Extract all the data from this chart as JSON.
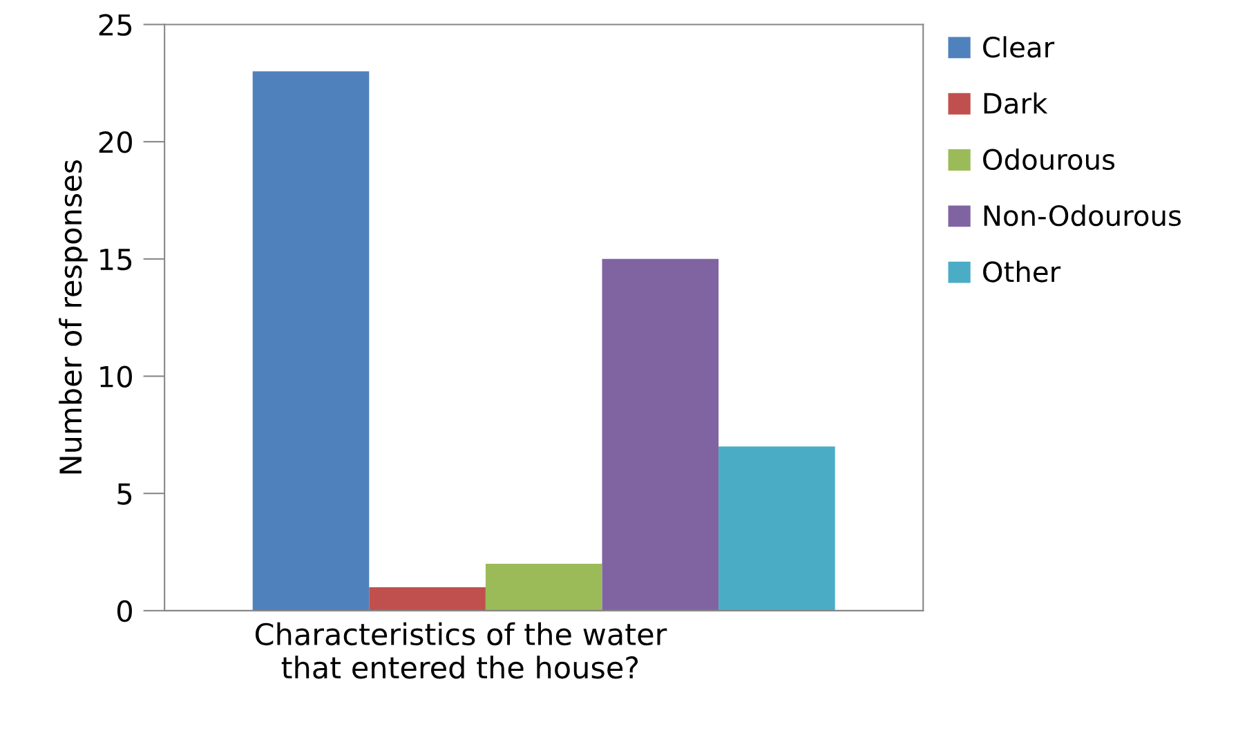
{
  "chart_data": {
    "type": "bar",
    "xlabel": "Characteristics of the water\nthat entered the house?",
    "ylabel": "Number of responses",
    "categories": [
      null
    ],
    "series": [
      {
        "name": "Clear",
        "color": "#4f81bd",
        "values": [
          23
        ]
      },
      {
        "name": "Dark",
        "color": "#c0504d",
        "values": [
          1
        ]
      },
      {
        "name": "Odourous",
        "color": "#9bbb59",
        "values": [
          2
        ]
      },
      {
        "name": "Non-Odourous",
        "color": "#8064a2",
        "values": [
          15
        ]
      },
      {
        "name": "Other",
        "color": "#4bacc6",
        "values": [
          7
        ]
      }
    ],
    "ylim": [
      0,
      25
    ],
    "yticks": [
      0,
      5,
      10,
      15,
      20,
      25
    ],
    "grid": false,
    "legend": "right"
  }
}
